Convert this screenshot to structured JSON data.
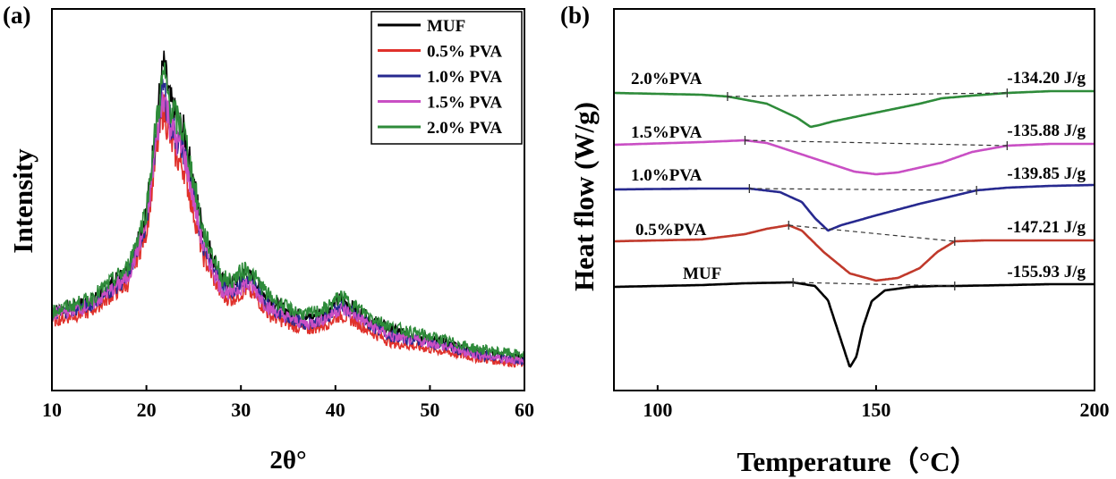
{
  "chart_data": [
    {
      "panel": "(a)",
      "type": "line",
      "title": "",
      "xlabel": "2θ°",
      "ylabel": "Intensity",
      "xlim": [
        10,
        60
      ],
      "xticks": [
        10,
        20,
        30,
        40,
        50,
        60
      ],
      "yticks": [],
      "grid": false,
      "legend_position": "top-right",
      "series": [
        {
          "name": "MUF",
          "color": "#000000",
          "x": [
            10,
            14,
            18,
            20,
            21,
            21.8,
            22.5,
            23.2,
            24,
            25,
            26,
            28,
            29,
            30.5,
            31.5,
            33,
            35,
            37,
            39,
            40.5,
            42,
            44,
            46,
            50,
            55,
            60
          ],
          "y": [
            0.2,
            0.23,
            0.33,
            0.52,
            0.8,
            1.0,
            0.88,
            0.82,
            0.78,
            0.62,
            0.46,
            0.3,
            0.29,
            0.32,
            0.3,
            0.24,
            0.2,
            0.18,
            0.2,
            0.24,
            0.21,
            0.17,
            0.14,
            0.11,
            0.07,
            0.05
          ]
        },
        {
          "name": "0.5% PVA",
          "color": "#e0312b",
          "x": [
            10,
            14,
            18,
            20,
            21,
            21.8,
            22.5,
            23.2,
            24,
            25,
            26,
            28,
            29,
            30.5,
            31.5,
            33,
            35,
            37,
            39,
            40.5,
            42,
            44,
            46,
            50,
            55,
            60
          ],
          "y": [
            0.17,
            0.2,
            0.29,
            0.46,
            0.7,
            0.86,
            0.76,
            0.7,
            0.66,
            0.52,
            0.38,
            0.25,
            0.24,
            0.27,
            0.25,
            0.19,
            0.16,
            0.14,
            0.16,
            0.19,
            0.17,
            0.13,
            0.1,
            0.08,
            0.05,
            0.03
          ]
        },
        {
          "name": "1.0% PVA",
          "color": "#27298f",
          "x": [
            10,
            14,
            18,
            20,
            21,
            21.8,
            22.5,
            23.2,
            24,
            25,
            26,
            28,
            29,
            30.5,
            31.5,
            33,
            35,
            37,
            39,
            40.5,
            42,
            44,
            46,
            50,
            55,
            60
          ],
          "y": [
            0.19,
            0.22,
            0.31,
            0.49,
            0.75,
            0.93,
            0.82,
            0.76,
            0.72,
            0.57,
            0.42,
            0.28,
            0.27,
            0.3,
            0.28,
            0.22,
            0.18,
            0.16,
            0.18,
            0.22,
            0.19,
            0.15,
            0.12,
            0.1,
            0.06,
            0.04
          ]
        },
        {
          "name": "1.5% PVA",
          "color": "#c94fc4",
          "x": [
            10,
            14,
            18,
            20,
            21,
            21.8,
            22.5,
            23.2,
            24,
            25,
            26,
            28,
            29,
            30.5,
            31.5,
            33,
            35,
            37,
            39,
            40.5,
            42,
            44,
            46,
            50,
            55,
            60
          ],
          "y": [
            0.19,
            0.22,
            0.31,
            0.48,
            0.74,
            0.91,
            0.81,
            0.75,
            0.71,
            0.56,
            0.41,
            0.27,
            0.26,
            0.29,
            0.27,
            0.21,
            0.18,
            0.16,
            0.18,
            0.21,
            0.19,
            0.15,
            0.12,
            0.1,
            0.06,
            0.04
          ]
        },
        {
          "name": "2.0% PVA",
          "color": "#2e8b3a",
          "x": [
            10,
            14,
            18,
            20,
            21,
            21.8,
            22.5,
            23.2,
            24,
            25,
            26,
            28,
            29,
            30.5,
            31.5,
            33,
            35,
            37,
            39,
            40.5,
            42,
            44,
            46,
            50,
            55,
            60
          ],
          "y": [
            0.2,
            0.24,
            0.34,
            0.53,
            0.8,
            0.97,
            0.87,
            0.82,
            0.78,
            0.62,
            0.46,
            0.31,
            0.3,
            0.34,
            0.31,
            0.25,
            0.21,
            0.19,
            0.21,
            0.25,
            0.22,
            0.18,
            0.15,
            0.12,
            0.08,
            0.06
          ]
        }
      ]
    },
    {
      "panel": "(b)",
      "type": "line",
      "title": "",
      "xlabel": "Temperature（°C）",
      "ylabel": "Heat flow (W/g)",
      "xlim": [
        90,
        200
      ],
      "xticks": [
        100,
        150,
        200
      ],
      "yticks": [],
      "grid": false,
      "series": [
        {
          "name": "2.0%PVA",
          "label": "2.0%PVA",
          "enthalpy": "-134.20 J/g",
          "color": "#2e8b3a",
          "onset": 116,
          "endset": 180,
          "x": [
            90,
            110,
            116,
            125,
            132,
            135,
            137,
            140,
            150,
            160,
            165,
            172,
            180,
            190,
            200
          ],
          "y": [
            0,
            -0.2,
            -0.4,
            -1.2,
            -2.8,
            -3.8,
            -3.6,
            -3.2,
            -2.2,
            -1.2,
            -0.6,
            -0.3,
            0,
            0.2,
            0.2
          ]
        },
        {
          "name": "1.5%PVA",
          "label": "1.5%PVA",
          "enthalpy": "-135.88 J/g",
          "color": "#c94fc4",
          "onset": 120,
          "endset": 180,
          "x": [
            90,
            110,
            120,
            125,
            135,
            145,
            150,
            155,
            165,
            172,
            180,
            190,
            200
          ],
          "y": [
            0,
            0.3,
            0.5,
            0.2,
            -1.4,
            -3.0,
            -3.3,
            -3.1,
            -2.0,
            -0.8,
            -0.1,
            0.1,
            0.1
          ]
        },
        {
          "name": "1.0%PVA",
          "label": "1.0%PVA",
          "enthalpy": "-139.85 J/g",
          "color": "#27298f",
          "onset": 121,
          "endset": 173,
          "x": [
            90,
            110,
            121,
            128,
            133,
            136,
            139,
            142,
            150,
            160,
            167,
            173,
            180,
            190,
            200
          ],
          "y": [
            0,
            0.1,
            0.1,
            -0.3,
            -1.4,
            -3.2,
            -4.6,
            -4.0,
            -2.9,
            -1.6,
            -0.8,
            -0.1,
            0.2,
            0.4,
            0.5
          ]
        },
        {
          "name": "0.5%PVA",
          "label": "0.5%PVA",
          "enthalpy": "-147.21 J/g",
          "color": "#c0392b",
          "onset": 130,
          "endset": 168,
          "x": [
            90,
            110,
            120,
            125,
            130,
            133,
            138,
            144,
            150,
            155,
            160,
            164,
            168,
            175,
            190,
            200
          ],
          "y": [
            0,
            0.2,
            0.8,
            1.4,
            1.8,
            1.2,
            -1.2,
            -3.6,
            -4.4,
            -4.1,
            -3.0,
            -1.2,
            0,
            0.1,
            0.1,
            0.1
          ]
        },
        {
          "name": "MUF",
          "label": "MUF",
          "enthalpy": "-155.93 J/g",
          "color": "#000000",
          "onset": 131,
          "endset": 168,
          "x": [
            90,
            110,
            120,
            131,
            136,
            139,
            141,
            143,
            144,
            145.5,
            147,
            149,
            152,
            158,
            164,
            168,
            180,
            190,
            200
          ],
          "y": [
            0,
            0.2,
            0.4,
            0.5,
            0.1,
            -1.5,
            -4.5,
            -7.5,
            -9.0,
            -7.8,
            -4.5,
            -1.6,
            -0.4,
            0,
            0.1,
            0.1,
            0.2,
            0.3,
            0.3
          ]
        }
      ]
    }
  ]
}
